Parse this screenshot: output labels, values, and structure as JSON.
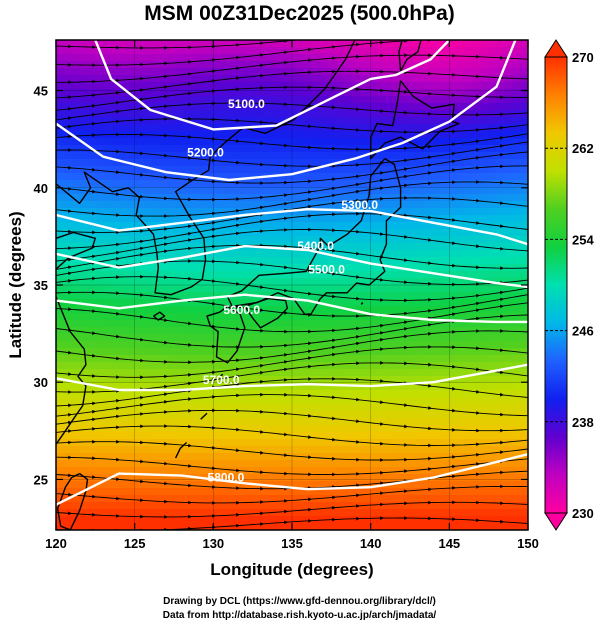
{
  "title": "MSM 00Z31Dec2025 (500.0hPa)",
  "x_axis": {
    "label": "Longitude (degrees)",
    "range": [
      120,
      150
    ],
    "ticks": [
      120,
      125,
      130,
      135,
      140,
      145,
      150
    ]
  },
  "y_axis": {
    "label": "Latitude  (degrees)",
    "range": [
      22.4,
      47.6
    ],
    "ticks": [
      25,
      30,
      35,
      40,
      45
    ]
  },
  "colorbar": {
    "range": [
      230,
      270
    ],
    "ticks": [
      230,
      238,
      246,
      254,
      262,
      270
    ],
    "palette": [
      "#ff00a0",
      "#c000c0",
      "#6000d0",
      "#1020f0",
      "#2060ff",
      "#00b8e8",
      "#00e0b0",
      "#10d040",
      "#50d020",
      "#c0e000",
      "#f0c800",
      "#ff8000",
      "#ff3000"
    ]
  },
  "contour_labels": [
    "5100.0",
    "5200.0",
    "5300.0",
    "5400.0",
    "5500.0",
    "5600.0",
    "5700.0",
    "5800.0"
  ],
  "credits": {
    "line1": "Drawing by DCL (https://www.gfd-dennou.org/library/dcl/)",
    "line2": "Data from http://database.rish.kyoto-u.ac.jp/arch/jmadata/"
  },
  "colors": {
    "contour": "#ffffff",
    "streamline": "#000000",
    "coastline": "#000000"
  }
}
